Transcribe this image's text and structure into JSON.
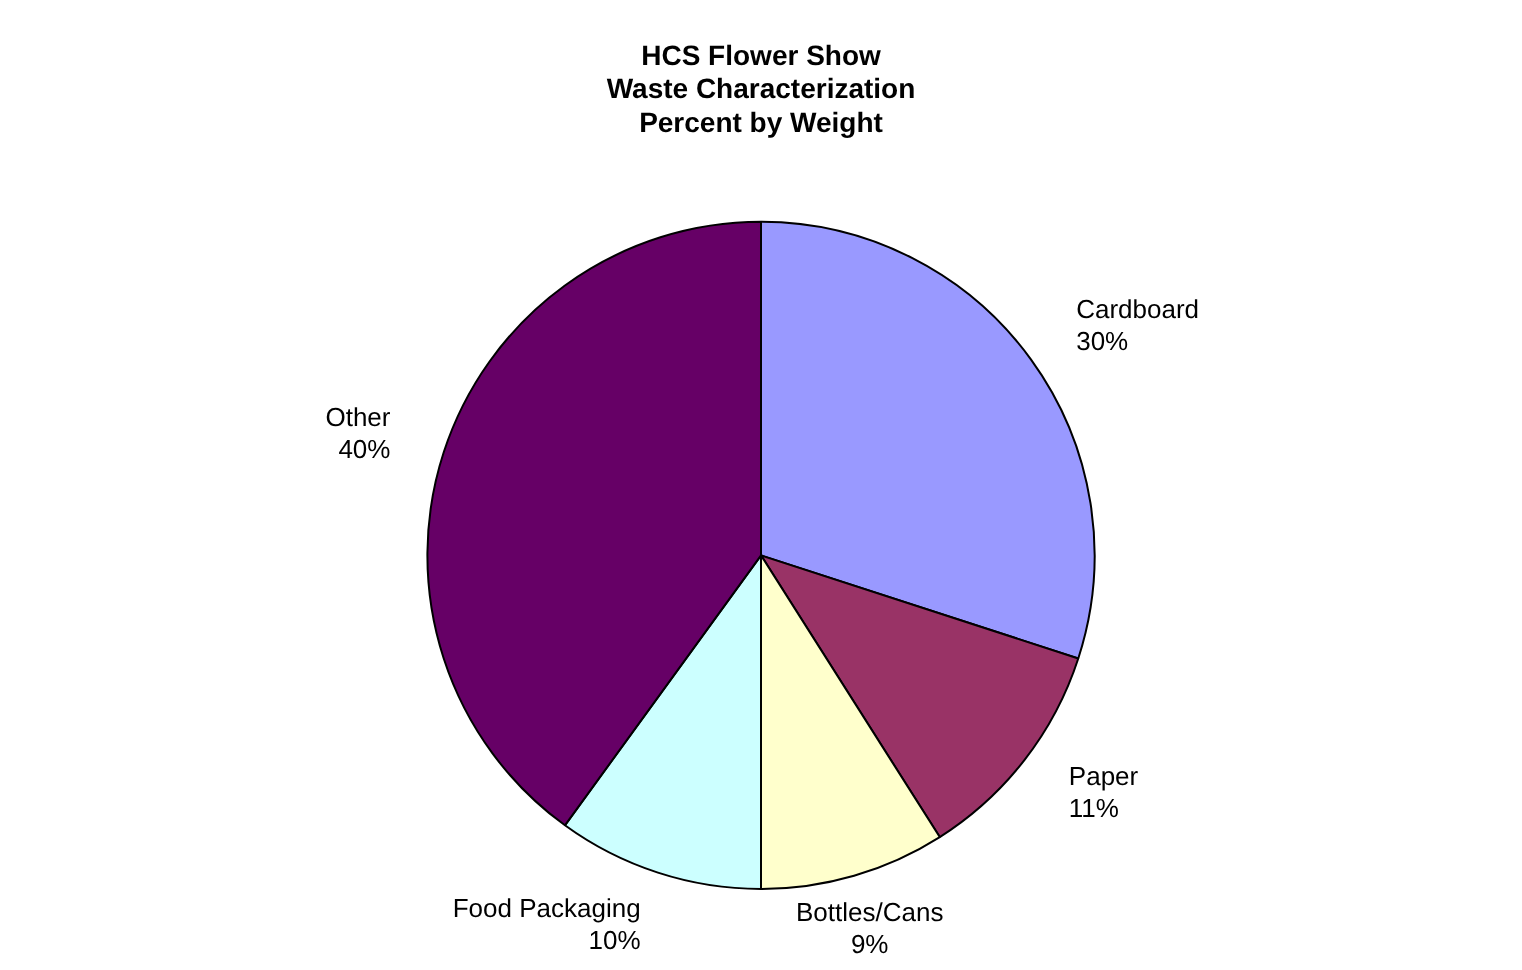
{
  "chart_data": {
    "type": "pie",
    "title": "HCS Flower Show\nWaste Characterization\nPercent by Weight",
    "categories": [
      "Cardboard",
      "Paper",
      "Bottles/Cans",
      "Food Packaging",
      "Other"
    ],
    "values": [
      30,
      11,
      9,
      10,
      40
    ],
    "colors": [
      "#9999ff",
      "#993366",
      "#ffffcc",
      "#ccffff",
      "#660066"
    ],
    "value_labels": [
      "30%",
      "11%",
      "9%",
      "10%",
      "40%"
    ],
    "legend": false
  }
}
